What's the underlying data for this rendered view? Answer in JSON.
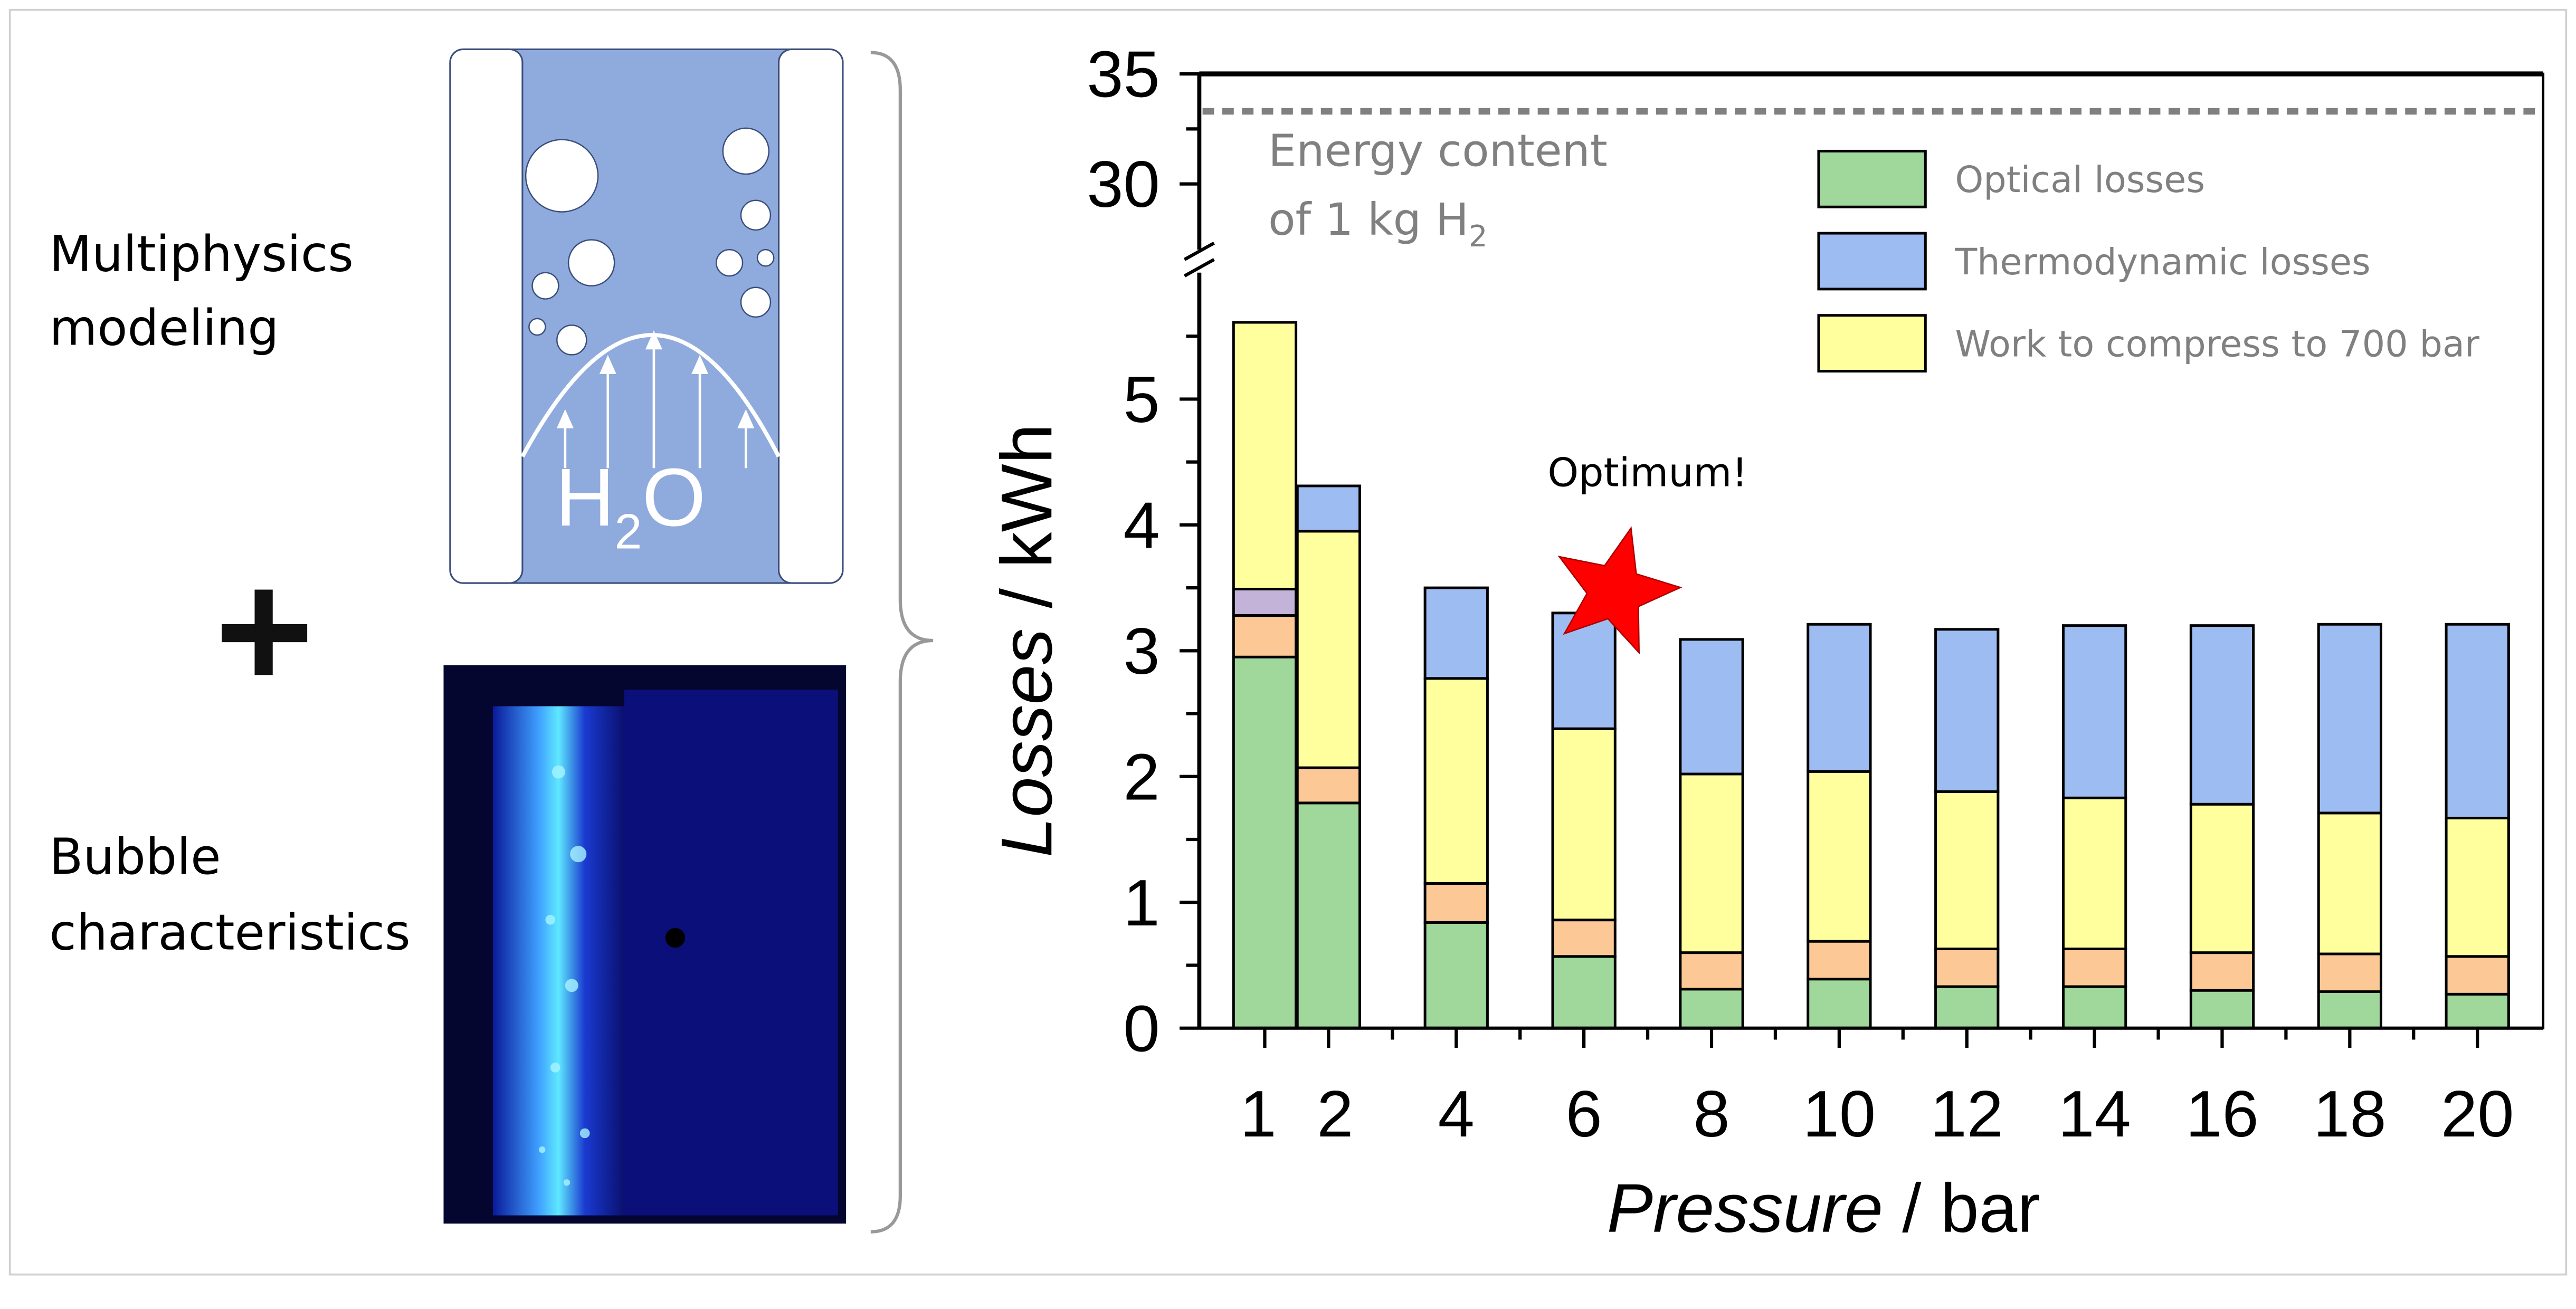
{
  "left_panel": {
    "label_top_line1": "Multiphysics",
    "label_top_line2": "modeling",
    "label_bottom_line1": "Bubble",
    "label_bottom_line2": "characteristics",
    "plus": "+",
    "schematic_text_main": "H",
    "schematic_text_sub": "2",
    "schematic_text_tail": "O"
  },
  "chart_data": {
    "type": "bar",
    "stacked": true,
    "x": [
      1,
      2,
      4,
      6,
      8,
      10,
      12,
      14,
      16,
      18,
      20
    ],
    "categories": [
      "1",
      "2",
      "4",
      "6",
      "8",
      "10",
      "12",
      "14",
      "16",
      "18",
      "20"
    ],
    "series": [
      {
        "name": "Optical losses",
        "color": "#a0d89c",
        "values": [
          2.95,
          1.79,
          0.84,
          0.57,
          0.31,
          0.39,
          0.33,
          0.33,
          0.3,
          0.29,
          0.27
        ]
      },
      {
        "name": "",
        "color": "#fbc896",
        "values": [
          0.33,
          0.28,
          0.31,
          0.29,
          0.29,
          0.3,
          0.3,
          0.3,
          0.3,
          0.3,
          0.3
        ]
      },
      {
        "name": "",
        "color": "#c3b3d8",
        "values": [
          0.21,
          0,
          0,
          0,
          0,
          0,
          0,
          0,
          0,
          0,
          0
        ]
      },
      {
        "name": "Work to compress to 700 bar",
        "color": "#ffff9e",
        "values": [
          2.12,
          1.88,
          1.63,
          1.52,
          1.42,
          1.35,
          1.25,
          1.2,
          1.18,
          1.12,
          1.1
        ]
      },
      {
        "name": "Thermodynamic losses",
        "color": "#9dbcf2",
        "values": [
          0,
          0.36,
          0.72,
          0.92,
          1.07,
          1.17,
          1.29,
          1.37,
          1.42,
          1.5,
          1.54
        ]
      }
    ],
    "legend": [
      "Optical losses",
      "Thermodynamic losses",
      "Work to compress to 700 bar"
    ],
    "legend_colors": [
      "#a0d89c",
      "#9dbcf2",
      "#ffff9e"
    ],
    "legend_placement": "top-right",
    "xlabel_italic": "Pressure",
    "xlabel_rest": " / bar",
    "ylabel_italic": "Losses",
    "ylabel_rest": " / kWh",
    "ylim_lower": [
      0,
      5.8
    ],
    "ylim_upper": [
      27.5,
      35
    ],
    "yticks_lower": [
      "0",
      "1",
      "2",
      "3",
      "4",
      "5"
    ],
    "yticks_upper": [
      "30",
      "35"
    ],
    "reference_line": {
      "value": 33.3,
      "label_line1": "Energy content",
      "label_line2": "of 1 kg H",
      "label_sub": "2",
      "color": "#808080"
    },
    "annotation": {
      "text": "Optimum!",
      "x": 7,
      "y": 3.6,
      "marker": "star-icon",
      "color": "#ff0000"
    }
  }
}
